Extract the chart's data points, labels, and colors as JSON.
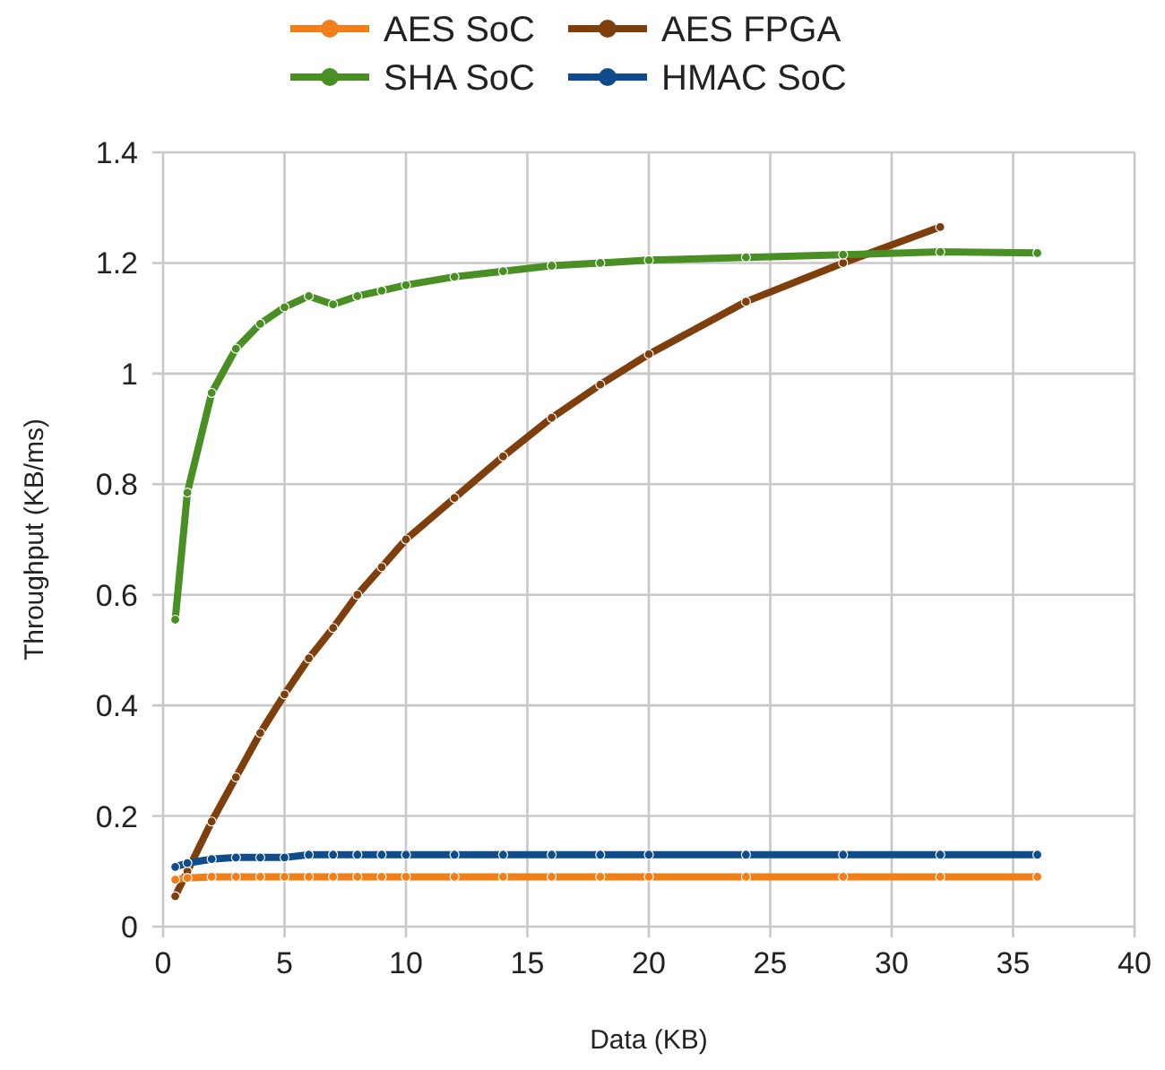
{
  "chart_data": {
    "type": "line",
    "xlabel": "Data (KB)",
    "ylabel": "Throughput (KB/ms)",
    "x": [
      0.5,
      1,
      2,
      3,
      4,
      5,
      6,
      7,
      8,
      9,
      10,
      12,
      14,
      16,
      18,
      20,
      24,
      28,
      32,
      36
    ],
    "series": [
      {
        "name": "AES SoC",
        "color": "#f07f1a",
        "values": [
          0.085,
          0.088,
          0.09,
          0.09,
          0.09,
          0.09,
          0.09,
          0.09,
          0.09,
          0.09,
          0.09,
          0.09,
          0.09,
          0.09,
          0.09,
          0.09,
          0.09,
          0.09,
          0.09,
          0.09
        ]
      },
      {
        "name": "AES FPGA",
        "color": "#7e3f0c",
        "values": [
          0.055,
          0.1,
          0.19,
          0.27,
          0.35,
          0.42,
          0.485,
          0.54,
          0.6,
          0.65,
          0.7,
          0.775,
          0.85,
          0.92,
          0.98,
          1.035,
          1.13,
          1.2,
          1.265,
          null
        ]
      },
      {
        "name": "SHA SoC",
        "color": "#4a8f24",
        "values": [
          0.555,
          0.785,
          0.965,
          1.045,
          1.09,
          1.12,
          1.14,
          1.125,
          1.14,
          1.15,
          1.16,
          1.175,
          1.185,
          1.195,
          1.2,
          1.205,
          1.21,
          1.215,
          1.22,
          1.218
        ]
      },
      {
        "name": "HMAC SoC",
        "color": "#0e4c8c",
        "values": [
          0.108,
          0.115,
          0.122,
          0.125,
          0.125,
          0.125,
          0.13,
          0.13,
          0.13,
          0.13,
          0.13,
          0.13,
          0.13,
          0.13,
          0.13,
          0.13,
          0.13,
          0.13,
          0.13,
          0.13
        ]
      }
    ],
    "xlim": [
      0,
      40
    ],
    "xticks": [
      0,
      5,
      10,
      15,
      20,
      25,
      30,
      35,
      40
    ],
    "ylim": [
      0,
      1.4
    ],
    "yticks": [
      0,
      0.2,
      0.4,
      0.6,
      0.8,
      1,
      1.2,
      1.4
    ],
    "grid": true,
    "legend": "top",
    "marker": "circle",
    "line_style": "solid"
  }
}
